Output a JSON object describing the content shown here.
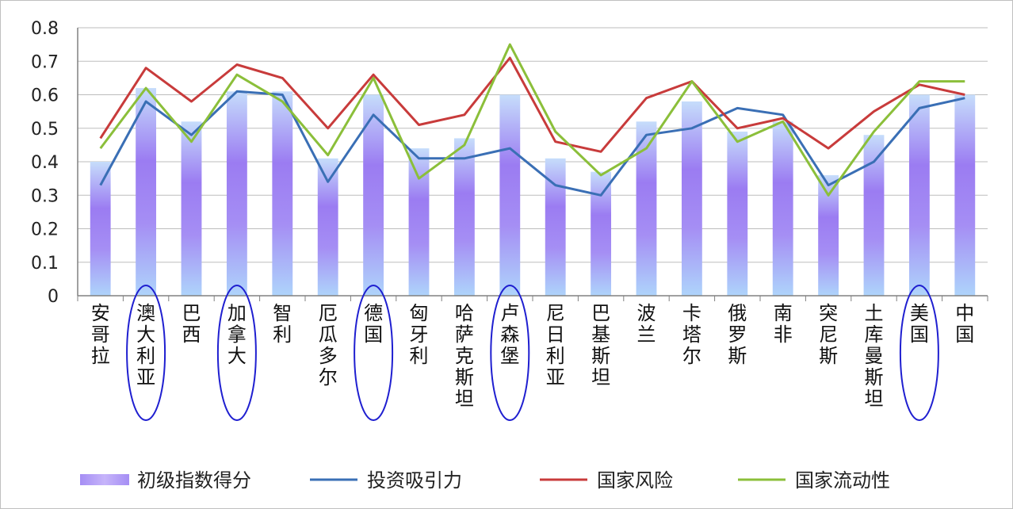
{
  "chart_data": {
    "type": "bar",
    "title": "",
    "xlabel": "",
    "ylabel": "",
    "ylim": [
      0,
      0.8
    ],
    "yticks": [
      "0",
      "0.1",
      "0.2",
      "0.3",
      "0.4",
      "0.5",
      "0.6",
      "0.7",
      "0.8"
    ],
    "grid": true,
    "legend_position": "bottom",
    "categories": [
      "安哥拉",
      "澳大利亚",
      "巴西",
      "加拿大",
      "智利",
      "厄瓜多尔",
      "德国",
      "匈牙利",
      "哈萨克斯坦",
      "卢森堡",
      "尼日利亚",
      "巴基斯坦",
      "波兰",
      "卡塔尔",
      "俄罗斯",
      "南非",
      "突尼斯",
      "土库曼斯坦",
      "美国",
      "中国"
    ],
    "highlighted_categories": [
      "澳大利亚",
      "加拿大",
      "德国",
      "卢森堡",
      "美国"
    ],
    "series": [
      {
        "name": "初级指数得分",
        "kind": "bar",
        "color": "#a78bfa",
        "values": [
          0.4,
          0.62,
          0.52,
          0.61,
          0.61,
          0.41,
          0.6,
          0.44,
          0.47,
          0.6,
          0.41,
          0.37,
          0.52,
          0.58,
          0.49,
          0.52,
          0.36,
          0.48,
          0.6,
          0.6
        ]
      },
      {
        "name": "投资吸引力",
        "kind": "line",
        "color": "#3a6fb5",
        "values": [
          0.33,
          0.58,
          0.48,
          0.61,
          0.6,
          0.34,
          0.54,
          0.41,
          0.41,
          0.44,
          0.33,
          0.3,
          0.48,
          0.5,
          0.56,
          0.54,
          0.33,
          0.4,
          0.56,
          0.59
        ]
      },
      {
        "name": "国家风险",
        "kind": "line",
        "color": "#c83b3b",
        "values": [
          0.47,
          0.68,
          0.58,
          0.69,
          0.65,
          0.5,
          0.66,
          0.51,
          0.54,
          0.71,
          0.46,
          0.43,
          0.59,
          0.64,
          0.5,
          0.53,
          0.44,
          0.55,
          0.63,
          0.6
        ]
      },
      {
        "name": "国家流动性",
        "kind": "line",
        "color": "#8bbf3a",
        "values": [
          0.44,
          0.62,
          0.46,
          0.66,
          0.58,
          0.42,
          0.65,
          0.35,
          0.45,
          0.75,
          0.49,
          0.36,
          0.44,
          0.64,
          0.46,
          0.52,
          0.3,
          0.49,
          0.64,
          0.64
        ]
      }
    ]
  }
}
